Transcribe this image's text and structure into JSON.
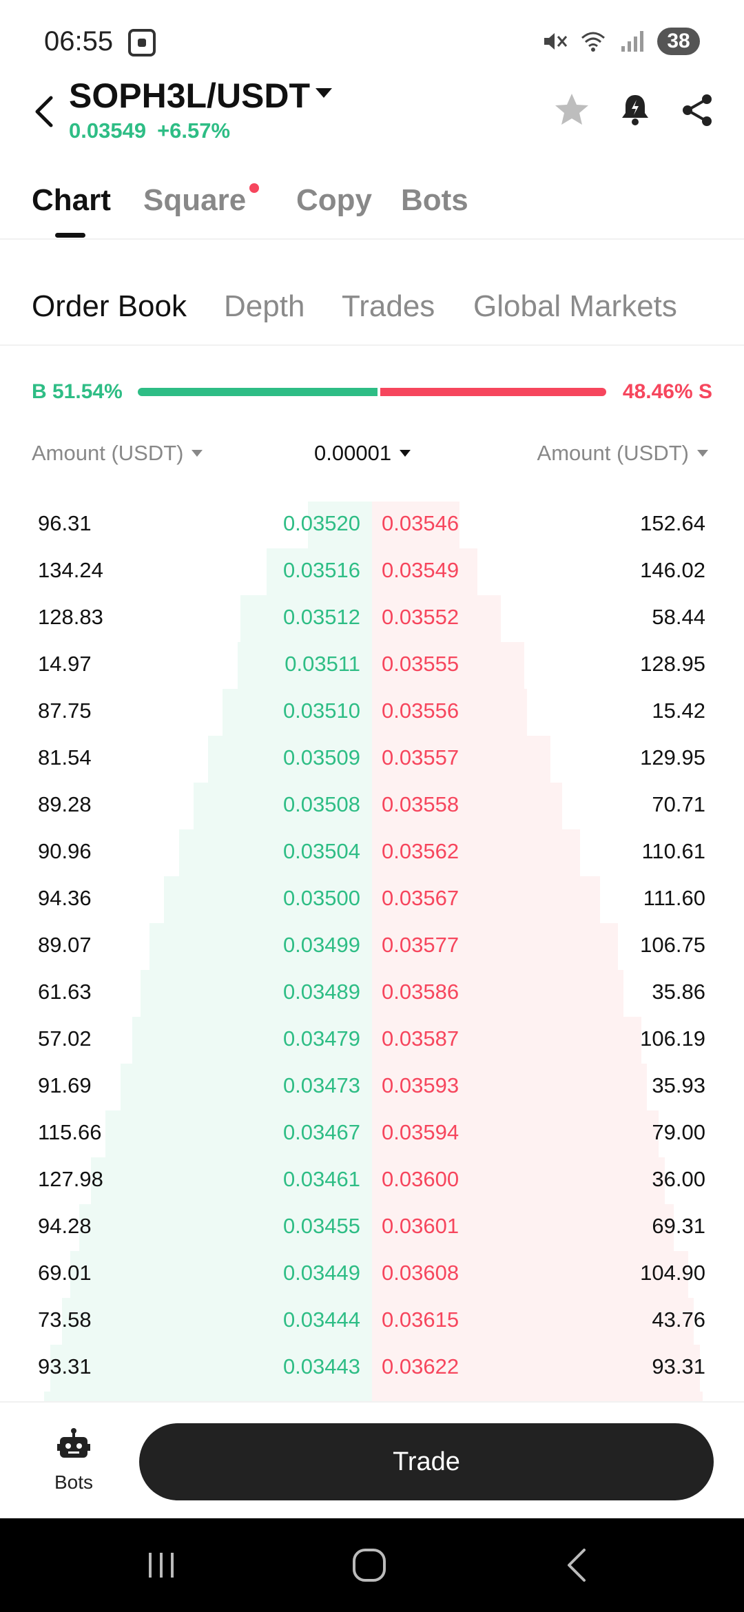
{
  "status_bar": {
    "time": "06:55",
    "battery": "38"
  },
  "header": {
    "pair": "SOPH3L/USDT",
    "last_price": "0.03549",
    "change": "+6.57%"
  },
  "main_tabs": [
    {
      "label": "Chart",
      "active": true
    },
    {
      "label": "Square",
      "active": false,
      "dot": true
    },
    {
      "label": "Copy",
      "active": false
    },
    {
      "label": "Bots",
      "active": false
    }
  ],
  "sub_tabs": [
    {
      "label": "Order Book",
      "active": true
    },
    {
      "label": "Depth",
      "active": false
    },
    {
      "label": "Trades",
      "active": false
    },
    {
      "label": "Global Markets",
      "active": false
    }
  ],
  "ratio": {
    "buy_label": "B 51.54%",
    "sell_label": "48.46% S",
    "buy_pct": 51.54,
    "sell_pct": 48.46
  },
  "columns": {
    "left": "Amount (USDT)",
    "precision": "0.00001",
    "right": "Amount (USDT)"
  },
  "order_book": [
    {
      "bid_amt": "96.31",
      "bid": "0.03520",
      "ask": "0.03546",
      "ask_amt": "152.64",
      "bid_depth": 0.22,
      "ask_depth": 0.3
    },
    {
      "bid_amt": "134.24",
      "bid": "0.03516",
      "ask": "0.03549",
      "ask_amt": "146.02",
      "bid_depth": 0.36,
      "ask_depth": 0.36
    },
    {
      "bid_amt": "128.83",
      "bid": "0.03512",
      "ask": "0.03552",
      "ask_amt": "58.44",
      "bid_depth": 0.45,
      "ask_depth": 0.44
    },
    {
      "bid_amt": "14.97",
      "bid": "0.03511",
      "ask": "0.03555",
      "ask_amt": "128.95",
      "bid_depth": 0.46,
      "ask_depth": 0.52
    },
    {
      "bid_amt": "87.75",
      "bid": "0.03510",
      "ask": "0.03556",
      "ask_amt": "15.42",
      "bid_depth": 0.51,
      "ask_depth": 0.53
    },
    {
      "bid_amt": "81.54",
      "bid": "0.03509",
      "ask": "0.03557",
      "ask_amt": "129.95",
      "bid_depth": 0.56,
      "ask_depth": 0.61
    },
    {
      "bid_amt": "89.28",
      "bid": "0.03508",
      "ask": "0.03558",
      "ask_amt": "70.71",
      "bid_depth": 0.61,
      "ask_depth": 0.65
    },
    {
      "bid_amt": "90.96",
      "bid": "0.03504",
      "ask": "0.03562",
      "ask_amt": "110.61",
      "bid_depth": 0.66,
      "ask_depth": 0.71
    },
    {
      "bid_amt": "94.36",
      "bid": "0.03500",
      "ask": "0.03567",
      "ask_amt": "111.60",
      "bid_depth": 0.71,
      "ask_depth": 0.78
    },
    {
      "bid_amt": "89.07",
      "bid": "0.03499",
      "ask": "0.03577",
      "ask_amt": "106.75",
      "bid_depth": 0.76,
      "ask_depth": 0.84
    },
    {
      "bid_amt": "61.63",
      "bid": "0.03489",
      "ask": "0.03586",
      "ask_amt": "35.86",
      "bid_depth": 0.79,
      "ask_depth": 0.86
    },
    {
      "bid_amt": "57.02",
      "bid": "0.03479",
      "ask": "0.03587",
      "ask_amt": "106.19",
      "bid_depth": 0.82,
      "ask_depth": 0.92
    },
    {
      "bid_amt": "91.69",
      "bid": "0.03473",
      "ask": "0.03593",
      "ask_amt": "35.93",
      "bid_depth": 0.86,
      "ask_depth": 0.94
    },
    {
      "bid_amt": "115.66",
      "bid": "0.03467",
      "ask": "0.03594",
      "ask_amt": "79.00",
      "bid_depth": 0.91,
      "ask_depth": 0.98
    },
    {
      "bid_amt": "127.98",
      "bid": "0.03461",
      "ask": "0.03600",
      "ask_amt": "36.00",
      "bid_depth": 0.96,
      "ask_depth": 1.0
    },
    {
      "bid_amt": "94.28",
      "bid": "0.03455",
      "ask": "0.03601",
      "ask_amt": "69.31",
      "bid_depth": 1.0,
      "ask_depth": 1.03
    },
    {
      "bid_amt": "69.01",
      "bid": "0.03449",
      "ask": "0.03608",
      "ask_amt": "104.90",
      "bid_depth": 1.03,
      "ask_depth": 1.08
    },
    {
      "bid_amt": "73.58",
      "bid": "0.03444",
      "ask": "0.03615",
      "ask_amt": "43.76",
      "bid_depth": 1.06,
      "ask_depth": 1.1
    },
    {
      "bid_amt": "93.31",
      "bid": "0.03443",
      "ask": "0.03622",
      "ask_amt": "93.31",
      "bid_depth": 1.1,
      "ask_depth": 1.12
    },
    {
      "bid_amt": "",
      "bid": "",
      "ask": "",
      "ask_amt": "",
      "bid_depth": 1.12,
      "ask_depth": 1.13
    }
  ],
  "bottom_bar": {
    "bots_label": "Bots",
    "trade_label": "Trade"
  },
  "icons": {
    "back": "chevron-left-icon",
    "favorite": "star-icon",
    "alert": "bell-icon",
    "share": "share-icon",
    "bots": "robot-icon"
  },
  "colors": {
    "buy": "#2ebd85",
    "sell": "#f6465d",
    "button": "#222222"
  }
}
